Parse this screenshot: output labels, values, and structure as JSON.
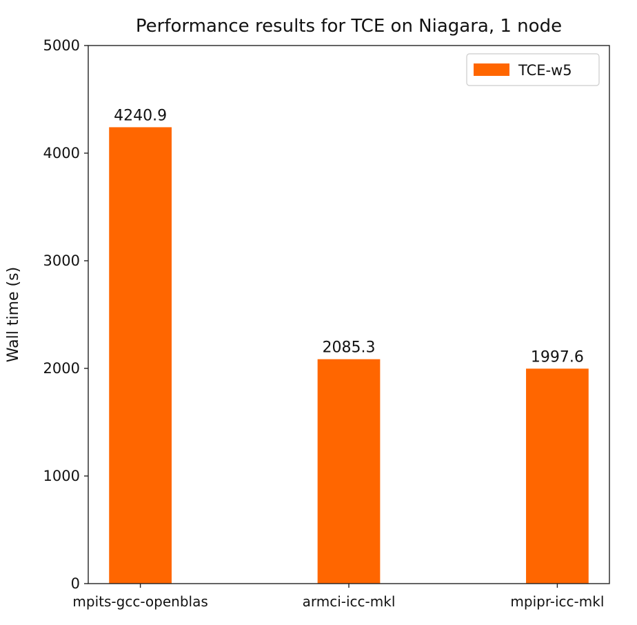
{
  "chart_data": {
    "type": "bar",
    "title": "Performance results for TCE on Niagara, 1 node",
    "xlabel": "",
    "ylabel": "Wall time (s)",
    "categories": [
      "mpits-gcc-openblas",
      "armci-icc-mkl",
      "mpipr-icc-mkl"
    ],
    "series": [
      {
        "name": "TCE-w5",
        "values": [
          4240.9,
          2085.3,
          1997.6
        ],
        "labels": [
          "4240.9",
          "2085.3",
          "1997.6"
        ],
        "color": "#ff6600"
      }
    ],
    "ylim": [
      0,
      5000
    ],
    "yticks": [
      0,
      1000,
      2000,
      3000,
      4000,
      5000
    ],
    "ytick_labels": [
      "0",
      "1000",
      "2000",
      "3000",
      "4000",
      "5000"
    ],
    "grid": false,
    "legend_position": "top-right"
  }
}
